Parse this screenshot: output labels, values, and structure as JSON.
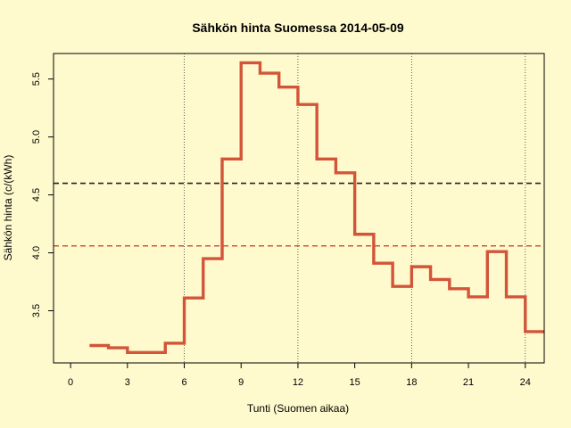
{
  "chart_data": {
    "type": "line",
    "step": true,
    "title": "Sähkön hinta Suomessa 2014-05-09",
    "xlabel": "Tunti (Suomen aikaa)",
    "ylabel": "Sähkön hinta (c/(kWh)",
    "xlim": [
      -0.9,
      25
    ],
    "ylim": [
      3.05,
      5.72
    ],
    "x_ticks": [
      0,
      3,
      6,
      9,
      12,
      15,
      18,
      21,
      24
    ],
    "y_ticks": [
      3.5,
      4.0,
      4.5,
      5.0,
      5.5
    ],
    "y_tick_labels": [
      "3.5",
      "4.0",
      "4.5",
      "5.0",
      "5.5"
    ],
    "vertical_gridlines": [
      6,
      12,
      18,
      24
    ],
    "series": [
      {
        "color": "#d2553a",
        "x": [
          1,
          2,
          3,
          4,
          5,
          6,
          7,
          8,
          9,
          10,
          11,
          12,
          13,
          14,
          15,
          16,
          17,
          18,
          19,
          20,
          21,
          22,
          23,
          24,
          25
        ],
        "values": [
          3.2,
          3.18,
          3.14,
          3.14,
          3.22,
          3.61,
          3.95,
          4.81,
          5.64,
          5.55,
          5.43,
          5.28,
          4.81,
          4.69,
          4.16,
          3.91,
          3.71,
          3.88,
          3.77,
          3.69,
          3.62,
          4.01,
          3.62,
          3.32,
          3.32
        ]
      }
    ],
    "reference_lines": [
      {
        "color": "#222222",
        "value": 4.6,
        "style": "dashed"
      },
      {
        "color": "#d2553a",
        "value": 4.06,
        "style": "dashed"
      }
    ],
    "grid": "vertical dotted at x = 6, 12, 18, 24"
  }
}
